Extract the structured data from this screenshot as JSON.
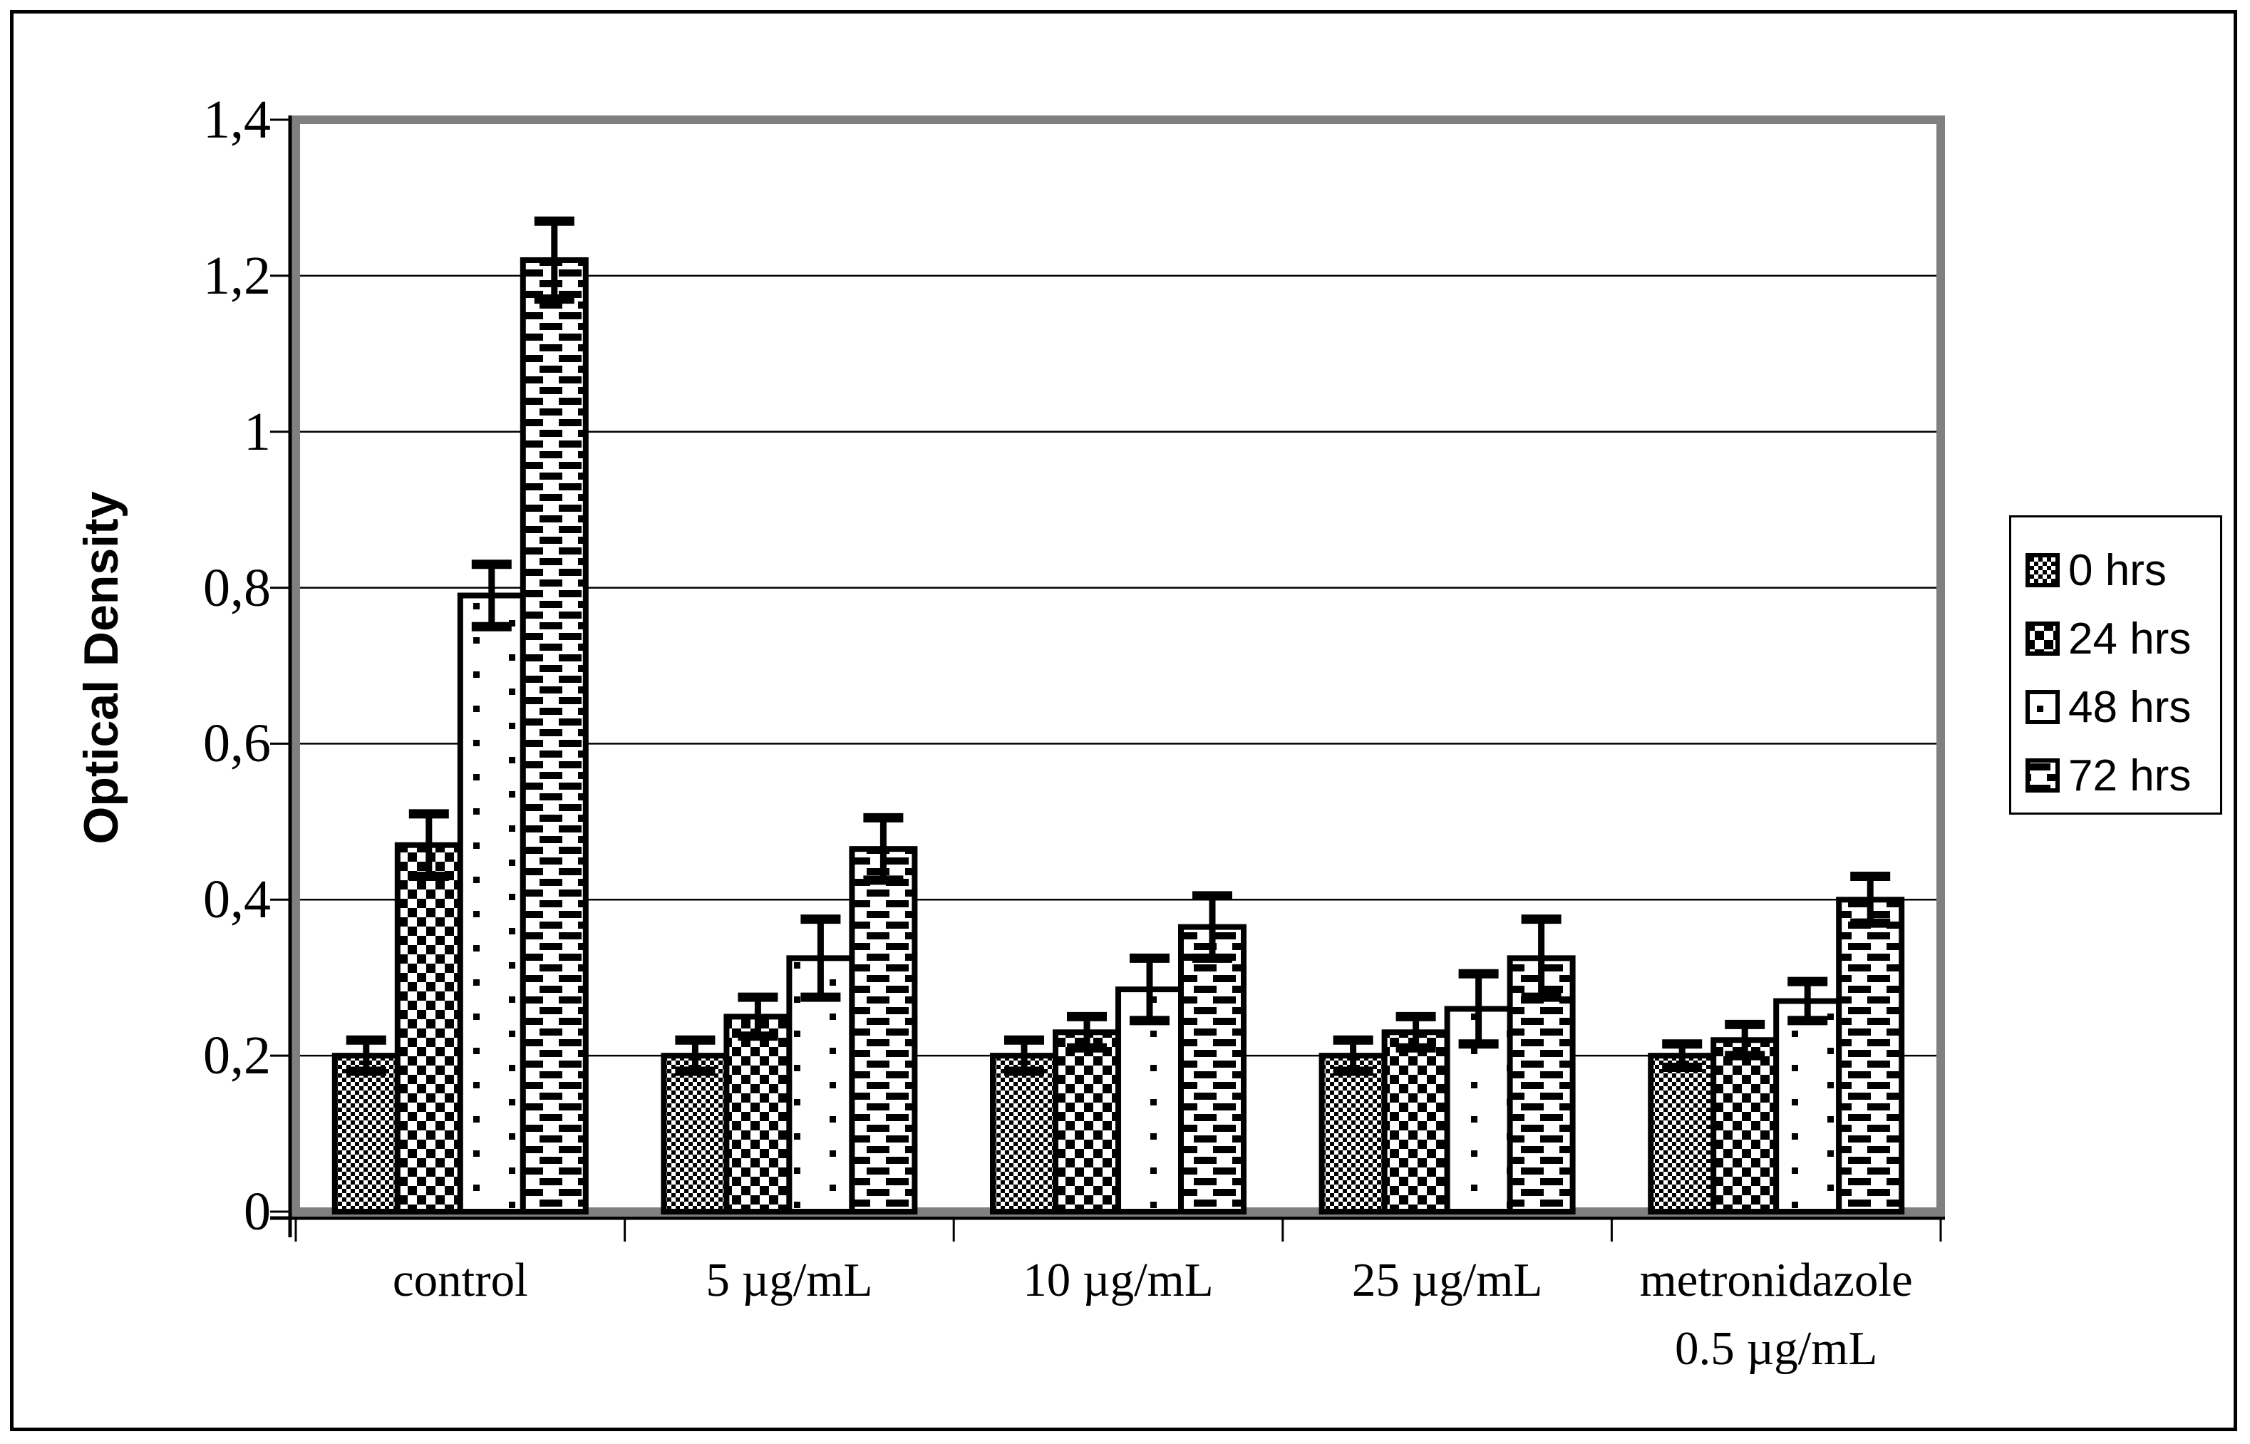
{
  "window": {
    "background_color": "#ffffff",
    "outer_border_color": "#000000"
  },
  "chart_data": {
    "type": "bar",
    "title": "",
    "xlabel": "",
    "ylabel": "Optical Density",
    "ylim": [
      0,
      1.4
    ],
    "ytick_step": 0.2,
    "ytick_labels": [
      "0",
      "0,2",
      "0,4",
      "0,6",
      "0,8",
      "1",
      "1,2",
      "1,4"
    ],
    "decimal_separator": ",",
    "grid": true,
    "legend_position": "right-outside",
    "frame_color": "#808080",
    "bar_outline_color": "#000000",
    "bar_fill_color": "#ffffff",
    "error_bar_color": "#000000",
    "categories": [
      "control",
      "5 µg/mL",
      "10 µg/mL",
      "25 µg/mL",
      "metronidazole 0.5 µg/mL"
    ],
    "category_label_lines": [
      [
        "control"
      ],
      [
        "5 µg/mL"
      ],
      [
        "10 µg/mL"
      ],
      [
        "25 µg/mL"
      ],
      [
        "metronidazole",
        "0.5 µg/mL"
      ]
    ],
    "series": [
      {
        "name": "0 hrs",
        "pattern": "fine-checker",
        "values": [
          0.2,
          0.2,
          0.2,
          0.2,
          0.2
        ],
        "errors": [
          0.02,
          0.02,
          0.02,
          0.02,
          0.015
        ]
      },
      {
        "name": "24 hrs",
        "pattern": "coarse-checker",
        "values": [
          0.47,
          0.25,
          0.23,
          0.23,
          0.22
        ],
        "errors": [
          0.04,
          0.025,
          0.02,
          0.02,
          0.02
        ]
      },
      {
        "name": "48 hrs",
        "pattern": "sparse-dots",
        "values": [
          0.79,
          0.325,
          0.285,
          0.26,
          0.27
        ],
        "errors": [
          0.04,
          0.05,
          0.04,
          0.045,
          0.025
        ]
      },
      {
        "name": "72 hrs",
        "pattern": "horizontal-dashes",
        "values": [
          1.22,
          0.465,
          0.365,
          0.325,
          0.4
        ],
        "errors": [
          0.05,
          0.04,
          0.04,
          0.05,
          0.03
        ]
      }
    ]
  }
}
